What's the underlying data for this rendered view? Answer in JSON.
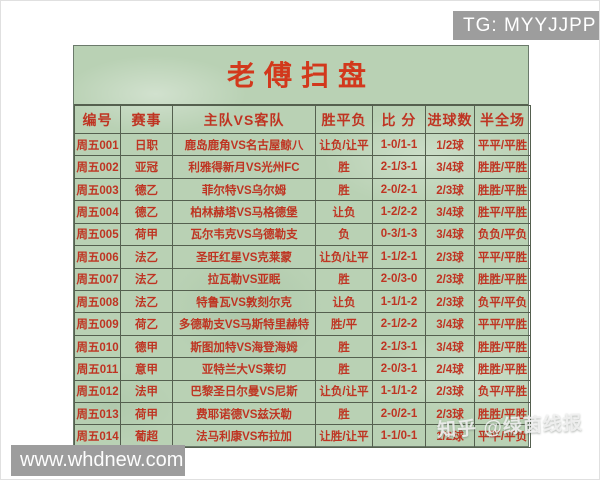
{
  "badge": {
    "text": "TG: MYYJJPP"
  },
  "title": "老傅扫盘",
  "table": {
    "headers": [
      "编号",
      "赛事",
      "主队VS客队",
      "胜平负",
      "比 分",
      "进球数",
      "半全场"
    ],
    "rows": [
      [
        "周五001",
        "日职",
        "鹿岛鹿角VS名古屋鲸八",
        "让负/让平",
        "1-0/1-1",
        "1/2球",
        "平平/平胜"
      ],
      [
        "周五002",
        "亚冠",
        "利雅得新月VS光州FC",
        "胜",
        "2-1/3-1",
        "3/4球",
        "胜胜/平胜"
      ],
      [
        "周五003",
        "德乙",
        "菲尔特VS乌尔姆",
        "胜",
        "2-0/2-1",
        "2/3球",
        "胜胜/平胜"
      ],
      [
        "周五004",
        "德乙",
        "柏林赫塔VS马格德堡",
        "让负",
        "1-2/2-2",
        "3/4球",
        "胜平/平胜"
      ],
      [
        "周五005",
        "荷甲",
        "瓦尔韦克VS乌德勒支",
        "负",
        "0-3/1-3",
        "3/4球",
        "负负/平负"
      ],
      [
        "周五006",
        "法乙",
        "圣旺红星VS克莱蒙",
        "让负/让平",
        "1-1/2-1",
        "2/3球",
        "平平/平胜"
      ],
      [
        "周五007",
        "法乙",
        "拉瓦勒VS亚眠",
        "胜",
        "2-0/3-0",
        "2/3球",
        "胜胜/平胜"
      ],
      [
        "周五008",
        "法乙",
        "特鲁瓦VS敦刻尔克",
        "让负",
        "1-1/1-2",
        "2/3球",
        "负平/平负"
      ],
      [
        "周五009",
        "荷乙",
        "多德勒支VS马斯特里赫特",
        "胜/平",
        "2-1/2-2",
        "3/4球",
        "平平/平胜"
      ],
      [
        "周五010",
        "德甲",
        "斯图加特VS海登海姆",
        "胜",
        "2-1/3-1",
        "3/4球",
        "胜胜/平胜"
      ],
      [
        "周五011",
        "意甲",
        "亚特兰大VS莱切",
        "胜",
        "2-0/3-1",
        "2/4球",
        "胜胜/平胜"
      ],
      [
        "周五012",
        "法甲",
        "巴黎圣日尔曼VS尼斯",
        "让负/让平",
        "1-1/1-2",
        "2/3球",
        "负平/平胜"
      ],
      [
        "周五013",
        "荷甲",
        "费耶诺德VS兹沃勒",
        "胜",
        "2-0/2-1",
        "2/3球",
        "胜胜/平胜"
      ],
      [
        "周五014",
        "葡超",
        "法马利康VS布拉加",
        "让胜/让平",
        "1-1/0-1",
        "1/2球",
        "平平/平负"
      ]
    ]
  },
  "watermark": "知乎 @绿茵线报",
  "url_bar": "www.whdnew.com",
  "colors": {
    "panel_bg": "#b9d1b4",
    "title_red": "#d2381c",
    "cell_red": "#bf3422",
    "grid_line": "#55604f",
    "overlay_gray": "#9d9d9d",
    "overlay_text": "#ffffff"
  }
}
